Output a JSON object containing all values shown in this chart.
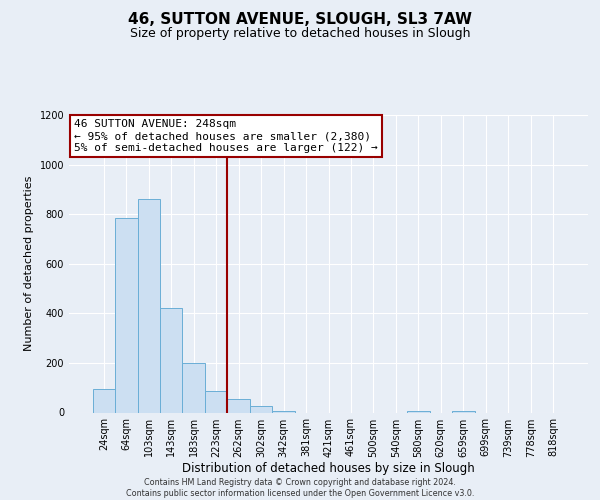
{
  "title": "46, SUTTON AVENUE, SLOUGH, SL3 7AW",
  "subtitle": "Size of property relative to detached houses in Slough",
  "xlabel": "Distribution of detached houses by size in Slough",
  "ylabel": "Number of detached properties",
  "bin_labels": [
    "24sqm",
    "64sqm",
    "103sqm",
    "143sqm",
    "183sqm",
    "223sqm",
    "262sqm",
    "302sqm",
    "342sqm",
    "381sqm",
    "421sqm",
    "461sqm",
    "500sqm",
    "540sqm",
    "580sqm",
    "620sqm",
    "659sqm",
    "699sqm",
    "739sqm",
    "778sqm",
    "818sqm"
  ],
  "bar_values": [
    95,
    785,
    860,
    420,
    200,
    88,
    55,
    25,
    5,
    0,
    0,
    0,
    0,
    0,
    5,
    0,
    5,
    0,
    0,
    0,
    0
  ],
  "bar_color": "#ccdff2",
  "bar_edge_color": "#6aaed6",
  "vline_color": "#990000",
  "vline_pos": 5.5,
  "annotation_line1": "46 SUTTON AVENUE: 248sqm",
  "annotation_line2": "← 95% of detached houses are smaller (2,380)",
  "annotation_line3": "5% of semi-detached houses are larger (122) →",
  "annotation_box_facecolor": "#ffffff",
  "annotation_box_edgecolor": "#990000",
  "ylim": [
    0,
    1200
  ],
  "yticks": [
    0,
    200,
    400,
    600,
    800,
    1000,
    1200
  ],
  "footer_line1": "Contains HM Land Registry data © Crown copyright and database right 2024.",
  "footer_line2": "Contains public sector information licensed under the Open Government Licence v3.0.",
  "bg_color": "#e8eef6",
  "title_fontsize": 11,
  "subtitle_fontsize": 9,
  "ylabel_fontsize": 8,
  "xlabel_fontsize": 8.5,
  "tick_fontsize": 7,
  "ann_fontsize": 8,
  "footer_fontsize": 5.8
}
